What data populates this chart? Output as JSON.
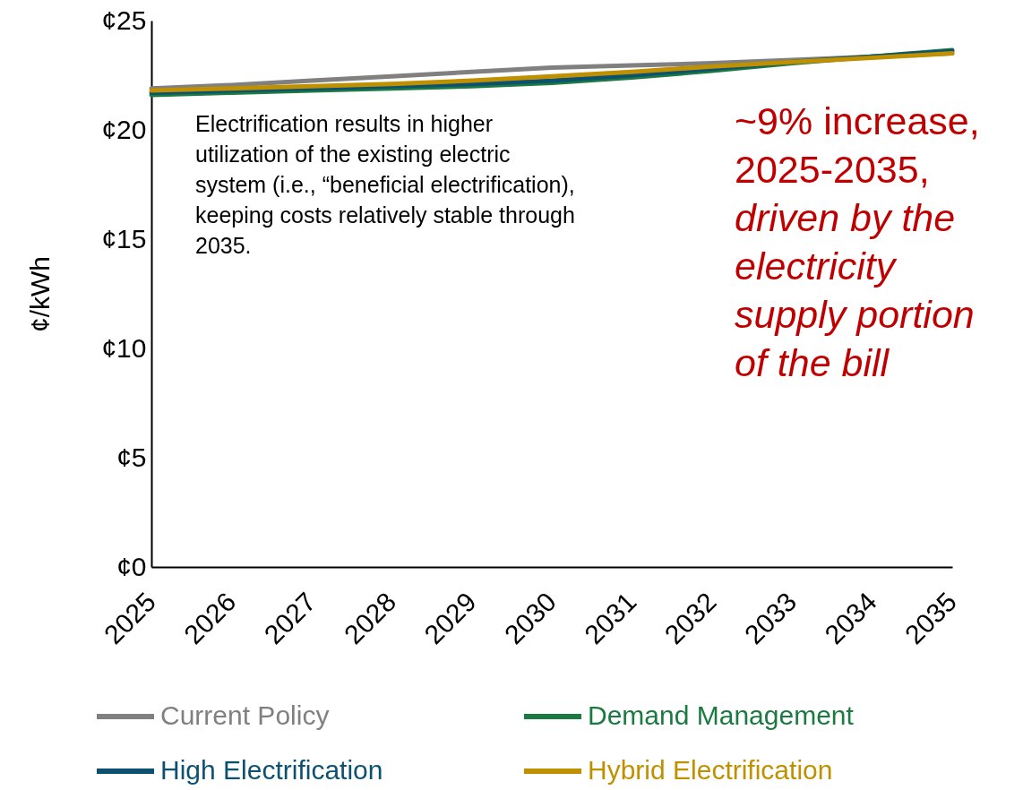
{
  "chart_data": {
    "type": "line",
    "categories": [
      "2025",
      "2026",
      "2027",
      "2028",
      "2029",
      "2030",
      "2031",
      "2032",
      "2033",
      "2034",
      "2035"
    ],
    "series": [
      {
        "name": "Current Policy",
        "color": "#808080",
        "values": [
          21.9,
          22.05,
          22.25,
          22.45,
          22.65,
          22.85,
          22.95,
          23.05,
          23.2,
          23.35,
          23.5
        ]
      },
      {
        "name": "Demand Management",
        "color": "#1b7a40",
        "values": [
          21.6,
          21.7,
          21.8,
          21.9,
          22.0,
          22.15,
          22.4,
          22.7,
          23.05,
          23.35,
          23.65
        ]
      },
      {
        "name": "High Electrification",
        "color": "#0d5170",
        "values": [
          21.7,
          21.8,
          21.9,
          22.0,
          22.1,
          22.25,
          22.5,
          22.8,
          23.1,
          23.35,
          23.6
        ]
      },
      {
        "name": "Hybrid Electrification",
        "color": "#bf9000",
        "values": [
          21.8,
          21.9,
          22.0,
          22.1,
          22.25,
          22.45,
          22.65,
          22.9,
          23.1,
          23.3,
          23.5
        ]
      }
    ],
    "ylabel": "¢/kWh",
    "ylim": [
      0,
      25
    ],
    "yticks": [
      {
        "value": 0,
        "label": "¢0"
      },
      {
        "value": 5,
        "label": "¢5"
      },
      {
        "value": 10,
        "label": "¢10"
      },
      {
        "value": 15,
        "label": "¢15"
      },
      {
        "value": 20,
        "label": "¢20"
      },
      {
        "value": 25,
        "label": "¢25"
      }
    ],
    "grid": false,
    "legend": "bottom",
    "annotations": [
      "Electrification results in higher utilization of the existing electric system (i.e., “beneficial electrification), keeping costs relatively stable through 2035.",
      "~9% increase, 2025-2035,",
      "driven by the electricity supply portion of the bill"
    ]
  }
}
